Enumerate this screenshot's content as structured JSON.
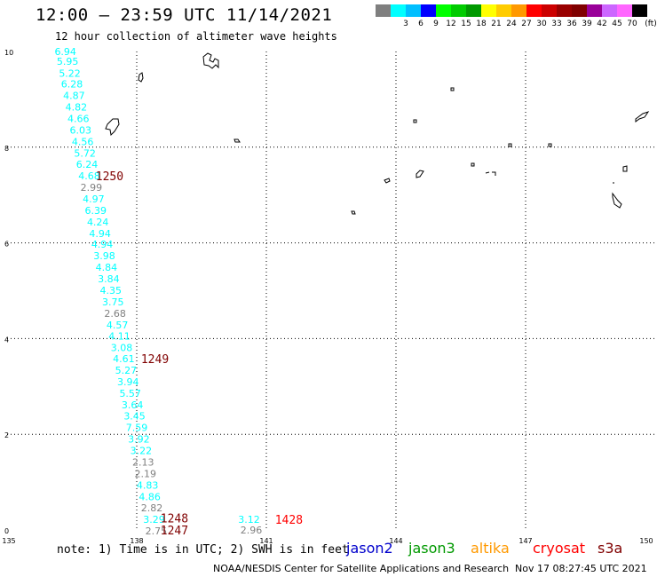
{
  "header": {
    "title": "12:00 – 23:59 UTC 11/14/2021",
    "subtitle": "12 hour collection of altimeter wave heights"
  },
  "legend": {
    "unit": "(ft)",
    "bins": [
      {
        "label": "",
        "color": "#7f7f7f"
      },
      {
        "label": "3",
        "color": "#00ffff"
      },
      {
        "label": "6",
        "color": "#00bfff"
      },
      {
        "label": "9",
        "color": "#0000ff"
      },
      {
        "label": "12",
        "color": "#00ff00"
      },
      {
        "label": "15",
        "color": "#00cc00"
      },
      {
        "label": "18",
        "color": "#009900"
      },
      {
        "label": "21",
        "color": "#ffff00"
      },
      {
        "label": "24",
        "color": "#ffcc00"
      },
      {
        "label": "27",
        "color": "#ff9900"
      },
      {
        "label": "30",
        "color": "#ff0000"
      },
      {
        "label": "33",
        "color": "#cc0000"
      },
      {
        "label": "36",
        "color": "#990000"
      },
      {
        "label": "39",
        "color": "#800000"
      },
      {
        "label": "42",
        "color": "#990099"
      },
      {
        "label": "45",
        "color": "#cc66ff"
      },
      {
        "label": "70",
        "color": "#ff66ff"
      },
      {
        "label": "",
        "color": "#000000"
      }
    ]
  },
  "axes": {
    "x_ticks": [
      "135",
      "138",
      "141",
      "144",
      "147",
      "150"
    ],
    "y_ticks": [
      "0",
      "2",
      "4",
      "6",
      "8",
      "10"
    ]
  },
  "track_labels": [
    {
      "text": "1250",
      "color": "#800000",
      "lon": 137.05,
      "lat": 7.4
    },
    {
      "text": "1249",
      "color": "#800000",
      "lon": 138.1,
      "lat": 3.58
    },
    {
      "text": "1248",
      "color": "#800000",
      "lon": 138.55,
      "lat": 0.25
    },
    {
      "text": "1247",
      "color": "#800000",
      "lon": 138.55,
      "lat": 0.0
    },
    {
      "text": "1428",
      "color": "#ff0000",
      "lon": 141.2,
      "lat": 0.22
    }
  ],
  "observations": [
    {
      "value": "6.94",
      "lon": 136.35,
      "lat": 10.0,
      "color": "#00ffff"
    },
    {
      "value": "5.95",
      "lon": 136.4,
      "lat": 9.8,
      "color": "#00ffff"
    },
    {
      "value": "5.22",
      "lon": 136.45,
      "lat": 9.55,
      "color": "#00ffff"
    },
    {
      "value": "6.28",
      "lon": 136.5,
      "lat": 9.32,
      "color": "#00ffff"
    },
    {
      "value": "4.87",
      "lon": 136.55,
      "lat": 9.08,
      "color": "#00ffff"
    },
    {
      "value": "4.82",
      "lon": 136.6,
      "lat": 8.84,
      "color": "#00ffff"
    },
    {
      "value": "4.66",
      "lon": 136.65,
      "lat": 8.6,
      "color": "#00ffff"
    },
    {
      "value": "6.03",
      "lon": 136.7,
      "lat": 8.36,
      "color": "#00ffff"
    },
    {
      "value": "4.56",
      "lon": 136.75,
      "lat": 8.12,
      "color": "#00ffff"
    },
    {
      "value": "5.72",
      "lon": 136.8,
      "lat": 7.88,
      "color": "#00ffff"
    },
    {
      "value": "6.24",
      "lon": 136.85,
      "lat": 7.64,
      "color": "#00ffff"
    },
    {
      "value": "4.68",
      "lon": 136.9,
      "lat": 7.4,
      "color": "#00ffff"
    },
    {
      "value": "2.99",
      "lon": 136.95,
      "lat": 7.16,
      "color": "#808080"
    },
    {
      "value": "4.97",
      "lon": 137.0,
      "lat": 6.92,
      "color": "#00ffff"
    },
    {
      "value": "6.39",
      "lon": 137.05,
      "lat": 6.68,
      "color": "#00ffff"
    },
    {
      "value": "4.24",
      "lon": 137.1,
      "lat": 6.44,
      "color": "#00ffff"
    },
    {
      "value": "4.94",
      "lon": 137.15,
      "lat": 6.2,
      "color": "#00ffff"
    },
    {
      "value": "4.94",
      "lon": 137.2,
      "lat": 5.97,
      "color": "#00ffff"
    },
    {
      "value": "3.98",
      "lon": 137.25,
      "lat": 5.73,
      "color": "#00ffff"
    },
    {
      "value": "4.84",
      "lon": 137.3,
      "lat": 5.49,
      "color": "#00ffff"
    },
    {
      "value": "3.84",
      "lon": 137.35,
      "lat": 5.25,
      "color": "#00ffff"
    },
    {
      "value": "4.35",
      "lon": 137.4,
      "lat": 5.01,
      "color": "#00ffff"
    },
    {
      "value": "3.75",
      "lon": 137.45,
      "lat": 4.77,
      "color": "#00ffff"
    },
    {
      "value": "2.68",
      "lon": 137.5,
      "lat": 4.53,
      "color": "#808080"
    },
    {
      "value": "4.57",
      "lon": 137.55,
      "lat": 4.29,
      "color": "#00ffff"
    },
    {
      "value": "4.11",
      "lon": 137.6,
      "lat": 4.05,
      "color": "#00ffff"
    },
    {
      "value": "3.08",
      "lon": 137.65,
      "lat": 3.81,
      "color": "#00ffff"
    },
    {
      "value": "4.61",
      "lon": 137.7,
      "lat": 3.58,
      "color": "#00ffff"
    },
    {
      "value": "5.27",
      "lon": 137.75,
      "lat": 3.34,
      "color": "#00ffff"
    },
    {
      "value": "3.94",
      "lon": 137.8,
      "lat": 3.1,
      "color": "#00ffff"
    },
    {
      "value": "5.57",
      "lon": 137.85,
      "lat": 2.86,
      "color": "#00ffff"
    },
    {
      "value": "3.64",
      "lon": 137.9,
      "lat": 2.62,
      "color": "#00ffff"
    },
    {
      "value": "3.45",
      "lon": 137.95,
      "lat": 2.38,
      "color": "#00ffff"
    },
    {
      "value": "7.59",
      "lon": 138.0,
      "lat": 2.14,
      "color": "#00ffff"
    },
    {
      "value": "3.92",
      "lon": 138.05,
      "lat": 1.9,
      "color": "#00ffff"
    },
    {
      "value": "3.22",
      "lon": 138.1,
      "lat": 1.66,
      "color": "#00ffff"
    },
    {
      "value": "2.13",
      "lon": 138.15,
      "lat": 1.42,
      "color": "#808080"
    },
    {
      "value": "2.19",
      "lon": 138.2,
      "lat": 1.18,
      "color": "#808080"
    },
    {
      "value": "4.83",
      "lon": 138.25,
      "lat": 0.94,
      "color": "#00ffff"
    },
    {
      "value": "4.86",
      "lon": 138.3,
      "lat": 0.7,
      "color": "#00ffff"
    },
    {
      "value": "2.82",
      "lon": 138.35,
      "lat": 0.46,
      "color": "#808080"
    },
    {
      "value": "3.29",
      "lon": 138.4,
      "lat": 0.22,
      "color": "#00ffff"
    },
    {
      "value": "2.75",
      "lon": 138.45,
      "lat": -0.02,
      "color": "#808080"
    },
    {
      "value": "3.12",
      "lon": 140.6,
      "lat": 0.22,
      "color": "#00ffff"
    },
    {
      "value": "2.96",
      "lon": 140.65,
      "lat": 0.0,
      "color": "#808080"
    }
  ],
  "footer": {
    "note": "note:  1) Time is in UTC; 2) SWH is in feet",
    "missions": [
      {
        "name": "jason2",
        "color": "#0000cc"
      },
      {
        "name": "jason3",
        "color": "#009900"
      },
      {
        "name": "altika",
        "color": "#ff9900"
      },
      {
        "name": "cryosat",
        "color": "#ff0000"
      },
      {
        "name": "s3a",
        "color": "#800000"
      }
    ],
    "credit": "NOAA/NESDIS Center for Satellite Applications and Research",
    "timestamp": "Nov 17 08:27:45 UTC 2021"
  }
}
